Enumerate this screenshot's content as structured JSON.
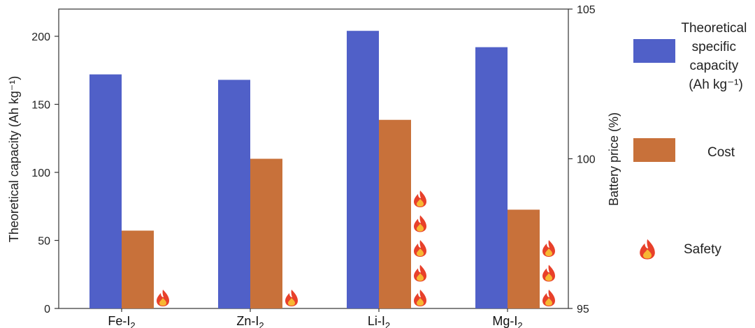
{
  "chart_data": {
    "type": "bar",
    "categories": [
      "Fe-I",
      "Zn-I",
      "Li-I",
      "Mg-I"
    ],
    "category_subscript": "2",
    "series": [
      {
        "name": "Theoretical specific capacity (Ah kg⁻¹)",
        "axis": "left",
        "color": "#5060c8",
        "values": [
          172,
          168,
          204,
          192
        ]
      },
      {
        "name": "Cost",
        "axis": "right",
        "color": "#c8713a",
        "values": [
          97.6,
          100.0,
          101.3,
          98.3
        ]
      }
    ],
    "safety": {
      "name": "Safety",
      "flame_counts": [
        1,
        1,
        5,
        3
      ]
    },
    "ylabel_left": "Theoretical capacity (Ah kg⁻¹)",
    "ylabel_right": "Battery price (%)",
    "ylim_left": [
      0,
      220
    ],
    "ylim_right": [
      95,
      105
    ],
    "yticks_left": [
      0,
      50,
      100,
      150,
      200
    ],
    "yticks_right": [
      95,
      100,
      105
    ],
    "legend": {
      "capacity_lines": [
        "Theoretical",
        "specific",
        "capacity",
        "(Ah kg⁻¹)"
      ],
      "cost": "Cost",
      "safety": "Safety",
      "position": "right"
    },
    "colors": {
      "capacity": "#5060c8",
      "cost": "#c8713a",
      "axis": "#333333",
      "flame_outer": "#e8402a",
      "flame_inner": "#f7b733"
    }
  }
}
